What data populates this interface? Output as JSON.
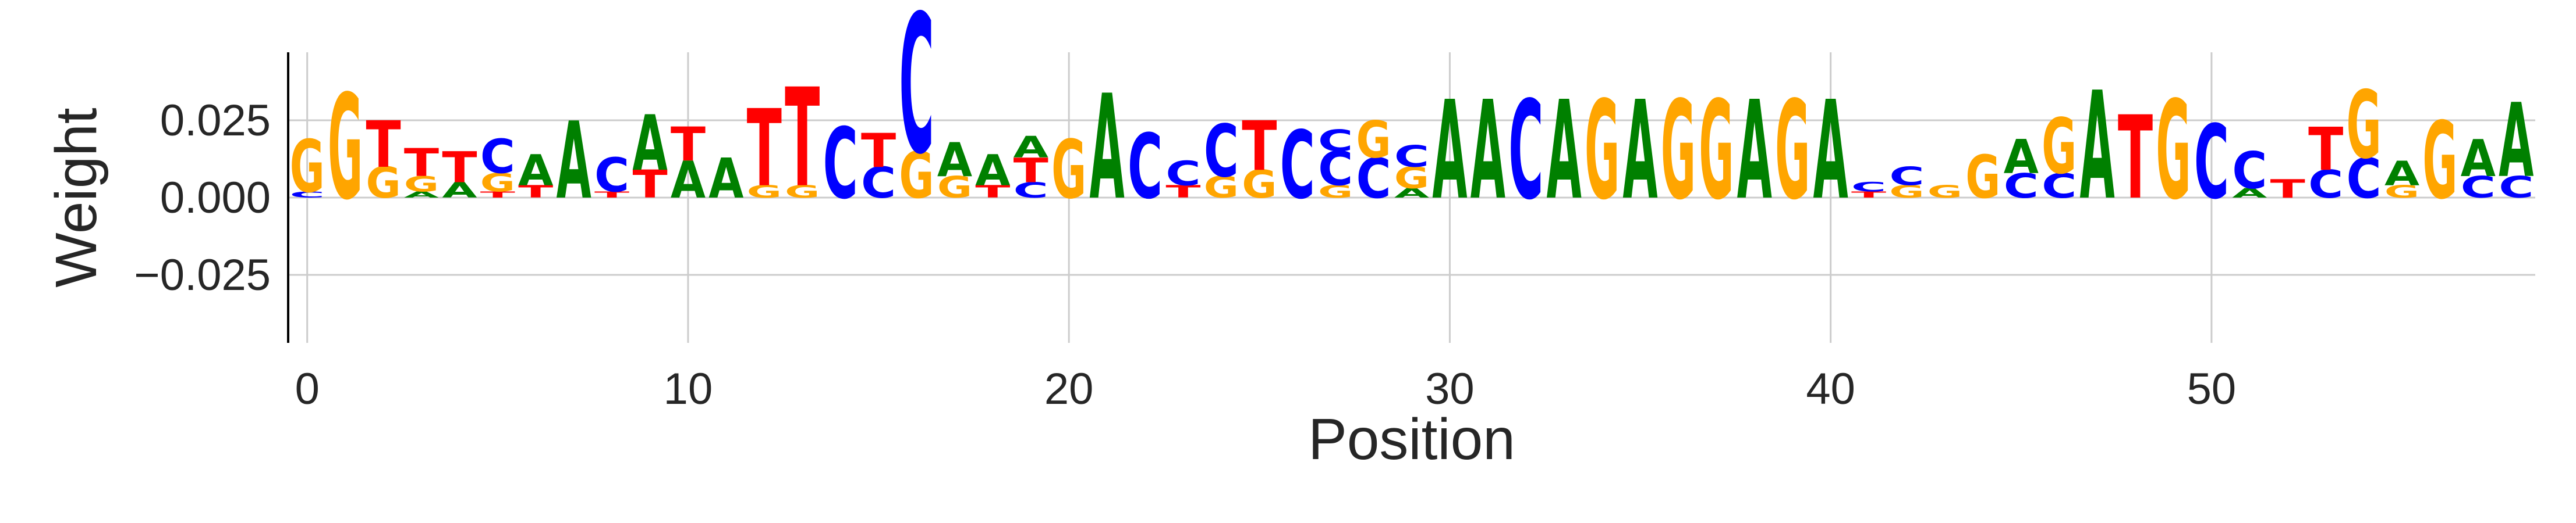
{
  "chart_data": {
    "type": "sequence-logo",
    "xlabel": "Position",
    "ylabel": "Weight",
    "xlim": [
      -0.5,
      58.5
    ],
    "ylim": [
      -0.047,
      0.047
    ],
    "x_ticks": [
      0,
      10,
      20,
      30,
      40,
      50
    ],
    "x_tick_labels": [
      "0",
      "10",
      "20",
      "30",
      "40",
      "50"
    ],
    "y_ticks": [
      -0.025,
      0.0,
      0.025
    ],
    "y_tick_labels": [
      "−0.025",
      "0.000",
      "0.025"
    ],
    "grid": true,
    "colors": {
      "A": "#008000",
      "C": "#0000ff",
      "G": "#ffa500",
      "T": "#ff0000"
    },
    "positions": [
      {
        "x": 0,
        "stack": [
          [
            "C",
            0.002
          ],
          [
            "G",
            0.017
          ]
        ]
      },
      {
        "x": 1,
        "stack": [
          [
            "G",
            0.034
          ]
        ]
      },
      {
        "x": 2,
        "stack": [
          [
            "G",
            0.01
          ],
          [
            "T",
            0.015
          ]
        ]
      },
      {
        "x": 3,
        "stack": [
          [
            "A",
            0.002
          ],
          [
            "G",
            0.005
          ],
          [
            "T",
            0.009
          ]
        ]
      },
      {
        "x": 4,
        "stack": [
          [
            "A",
            0.005
          ],
          [
            "T",
            0.01
          ]
        ]
      },
      {
        "x": 5,
        "stack": [
          [
            "T",
            0.002
          ],
          [
            "G",
            0.006
          ],
          [
            "C",
            0.011
          ]
        ]
      },
      {
        "x": 6,
        "stack": [
          [
            "T",
            0.004
          ],
          [
            "A",
            0.01
          ]
        ]
      },
      {
        "x": 7,
        "stack": [
          [
            "A",
            0.025
          ]
        ]
      },
      {
        "x": 8,
        "stack": [
          [
            "T",
            0.002
          ],
          [
            "C",
            0.011
          ]
        ]
      },
      {
        "x": 9,
        "stack": [
          [
            "T",
            0.009
          ],
          [
            "A",
            0.018
          ]
        ]
      },
      {
        "x": 10,
        "stack": [
          [
            "A",
            0.012
          ],
          [
            "T",
            0.011
          ]
        ]
      },
      {
        "x": 11,
        "stack": [
          [
            "A",
            0.013
          ]
        ]
      },
      {
        "x": 12,
        "stack": [
          [
            "G",
            0.004
          ],
          [
            "T",
            0.025
          ]
        ]
      },
      {
        "x": 13,
        "stack": [
          [
            "G",
            0.004
          ],
          [
            "T",
            0.032
          ]
        ]
      },
      {
        "x": 14,
        "stack": [
          [
            "C",
            0.023
          ]
        ]
      },
      {
        "x": 15,
        "stack": [
          [
            "C",
            0.01
          ],
          [
            "T",
            0.011
          ]
        ]
      },
      {
        "x": 16,
        "stack": [
          [
            "G",
            0.015
          ],
          [
            "C",
            0.045
          ]
        ]
      },
      {
        "x": 17,
        "stack": [
          [
            "G",
            0.007
          ],
          [
            "A",
            0.011
          ]
        ]
      },
      {
        "x": 18,
        "stack": [
          [
            "T",
            0.004
          ],
          [
            "A",
            0.01
          ]
        ]
      },
      {
        "x": 19,
        "stack": [
          [
            "C",
            0.005
          ],
          [
            "T",
            0.008
          ],
          [
            "A",
            0.007
          ]
        ]
      },
      {
        "x": 20,
        "stack": [
          [
            "G",
            0.019
          ]
        ]
      },
      {
        "x": 21,
        "stack": [
          [
            "A",
            0.034
          ]
        ]
      },
      {
        "x": 22,
        "stack": [
          [
            "C",
            0.021
          ]
        ]
      },
      {
        "x": 23,
        "stack": [
          [
            "T",
            0.004
          ],
          [
            "C",
            0.008
          ]
        ]
      },
      {
        "x": 24,
        "stack": [
          [
            "G",
            0.007
          ],
          [
            "C",
            0.017
          ]
        ]
      },
      {
        "x": 25,
        "stack": [
          [
            "G",
            0.009
          ],
          [
            "T",
            0.016
          ]
        ]
      },
      {
        "x": 26,
        "stack": [
          [
            "C",
            0.022
          ]
        ]
      },
      {
        "x": 27,
        "stack": [
          [
            "G",
            0.004
          ],
          [
            "C",
            0.011
          ],
          [
            "C",
            0.007
          ]
        ]
      },
      {
        "x": 28,
        "stack": [
          [
            "C",
            0.013
          ],
          [
            "G",
            0.012
          ]
        ]
      },
      {
        "x": 29,
        "stack": [
          [
            "A",
            0.003
          ],
          [
            "G",
            0.007
          ],
          [
            "C",
            0.007
          ]
        ]
      },
      {
        "x": 30,
        "stack": [
          [
            "A",
            0.032
          ]
        ]
      },
      {
        "x": 31,
        "stack": [
          [
            "A",
            0.032
          ]
        ]
      },
      {
        "x": 32,
        "stack": [
          [
            "C",
            0.032
          ]
        ]
      },
      {
        "x": 33,
        "stack": [
          [
            "A",
            0.032
          ]
        ]
      },
      {
        "x": 34,
        "stack": [
          [
            "G",
            0.032
          ]
        ]
      },
      {
        "x": 35,
        "stack": [
          [
            "A",
            0.032
          ]
        ]
      },
      {
        "x": 36,
        "stack": [
          [
            "G",
            0.032
          ]
        ]
      },
      {
        "x": 37,
        "stack": [
          [
            "G",
            0.032
          ]
        ]
      },
      {
        "x": 38,
        "stack": [
          [
            "A",
            0.032
          ]
        ]
      },
      {
        "x": 39,
        "stack": [
          [
            "G",
            0.032
          ]
        ]
      },
      {
        "x": 40,
        "stack": [
          [
            "A",
            0.032
          ]
        ]
      },
      {
        "x": 41,
        "stack": [
          [
            "T",
            0.002
          ],
          [
            "C",
            0.003
          ]
        ]
      },
      {
        "x": 42,
        "stack": [
          [
            "G",
            0.004
          ],
          [
            "C",
            0.006
          ]
        ]
      },
      {
        "x": 43,
        "stack": [
          [
            "G",
            0.004
          ]
        ]
      },
      {
        "x": 44,
        "stack": [
          [
            "G",
            0.014
          ]
        ]
      },
      {
        "x": 45,
        "stack": [
          [
            "C",
            0.008
          ],
          [
            "A",
            0.011
          ]
        ]
      },
      {
        "x": 46,
        "stack": [
          [
            "C",
            0.008
          ],
          [
            "G",
            0.018
          ]
        ]
      },
      {
        "x": 47,
        "stack": [
          [
            "A",
            0.035
          ]
        ]
      },
      {
        "x": 48,
        "stack": [
          [
            "T",
            0.027
          ]
        ]
      },
      {
        "x": 49,
        "stack": [
          [
            "G",
            0.032
          ]
        ]
      },
      {
        "x": 50,
        "stack": [
          [
            "C",
            0.024
          ]
        ]
      },
      {
        "x": 51,
        "stack": [
          [
            "A",
            0.003
          ],
          [
            "C",
            0.012
          ]
        ]
      },
      {
        "x": 52,
        "stack": [
          [
            "T",
            0.006
          ]
        ]
      },
      {
        "x": 53,
        "stack": [
          [
            "C",
            0.009
          ],
          [
            "T",
            0.014
          ]
        ]
      },
      {
        "x": 54,
        "stack": [
          [
            "C",
            0.013
          ],
          [
            "G",
            0.022
          ]
        ]
      },
      {
        "x": 55,
        "stack": [
          [
            "G",
            0.004
          ],
          [
            "A",
            0.008
          ]
        ]
      },
      {
        "x": 56,
        "stack": [
          [
            "G",
            0.025
          ]
        ]
      },
      {
        "x": 57,
        "stack": [
          [
            "C",
            0.007
          ],
          [
            "A",
            0.012
          ]
        ]
      },
      {
        "x": 58,
        "stack": [
          [
            "C",
            0.007
          ],
          [
            "A",
            0.024
          ]
        ]
      }
    ]
  }
}
